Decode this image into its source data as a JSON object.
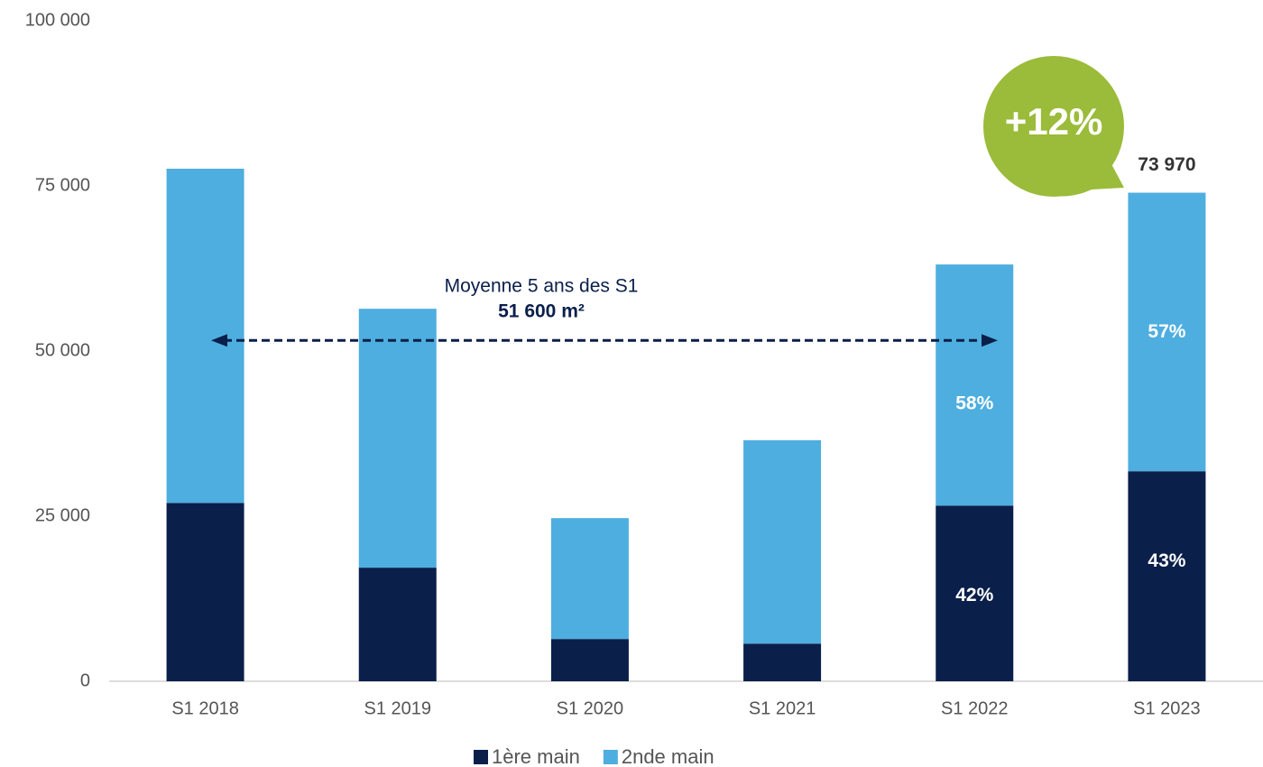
{
  "chart_data": {
    "type": "stacked_bar",
    "categories": [
      "S1 2018",
      "S1 2019",
      "S1 2020",
      "S1 2021",
      "S1 2022",
      "S1 2023"
    ],
    "series": [
      {
        "name": "1ère main",
        "color": "#0a1f4a",
        "values": [
          27000,
          17200,
          6400,
          5700,
          26600,
          31800
        ],
        "percent_labels": [
          null,
          null,
          null,
          null,
          "42%",
          "43%"
        ]
      },
      {
        "name": "2nde main",
        "color": "#4eaedf",
        "values": [
          50600,
          39200,
          18300,
          30800,
          36500,
          42170
        ],
        "percent_labels": [
          null,
          null,
          null,
          null,
          "58%",
          "57%"
        ]
      }
    ],
    "total_labels": [
      null,
      null,
      null,
      null,
      null,
      "73 970"
    ],
    "ylim": [
      0,
      100000
    ],
    "yticks": [
      0,
      {
        "value": 25000,
        "label": "25 000"
      },
      {
        "value": 50000,
        "label": "50 000"
      },
      {
        "value": 75000,
        "label": "75 000"
      },
      {
        "value": 100000,
        "label": "100 000"
      }
    ],
    "average": {
      "label": "Moyenne 5 ans des S1",
      "value_label": "51 600 m²",
      "value": 51600
    },
    "badge": "+12%",
    "legend": "bottom"
  }
}
